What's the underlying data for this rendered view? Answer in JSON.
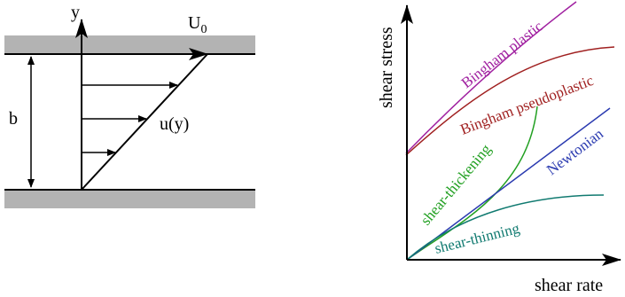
{
  "couette": {
    "y_axis_label": "y",
    "velocity_label": "U",
    "velocity_subscript": "0",
    "profile_label": "u(y)",
    "gap_label": "b"
  },
  "rheology": {
    "x_axis_label": "shear rate",
    "y_axis_label": "shear stress",
    "curves": [
      {
        "name": "Bingham plastic",
        "color": "#a020a0"
      },
      {
        "name": "Bingham pseudoplastic",
        "color": "#a02020"
      },
      {
        "name": "shear-thickening",
        "color": "#22a022"
      },
      {
        "name": "Newtonian",
        "color": "#2a3ab0"
      },
      {
        "name": "shear-thinning",
        "color": "#107a70"
      }
    ]
  }
}
